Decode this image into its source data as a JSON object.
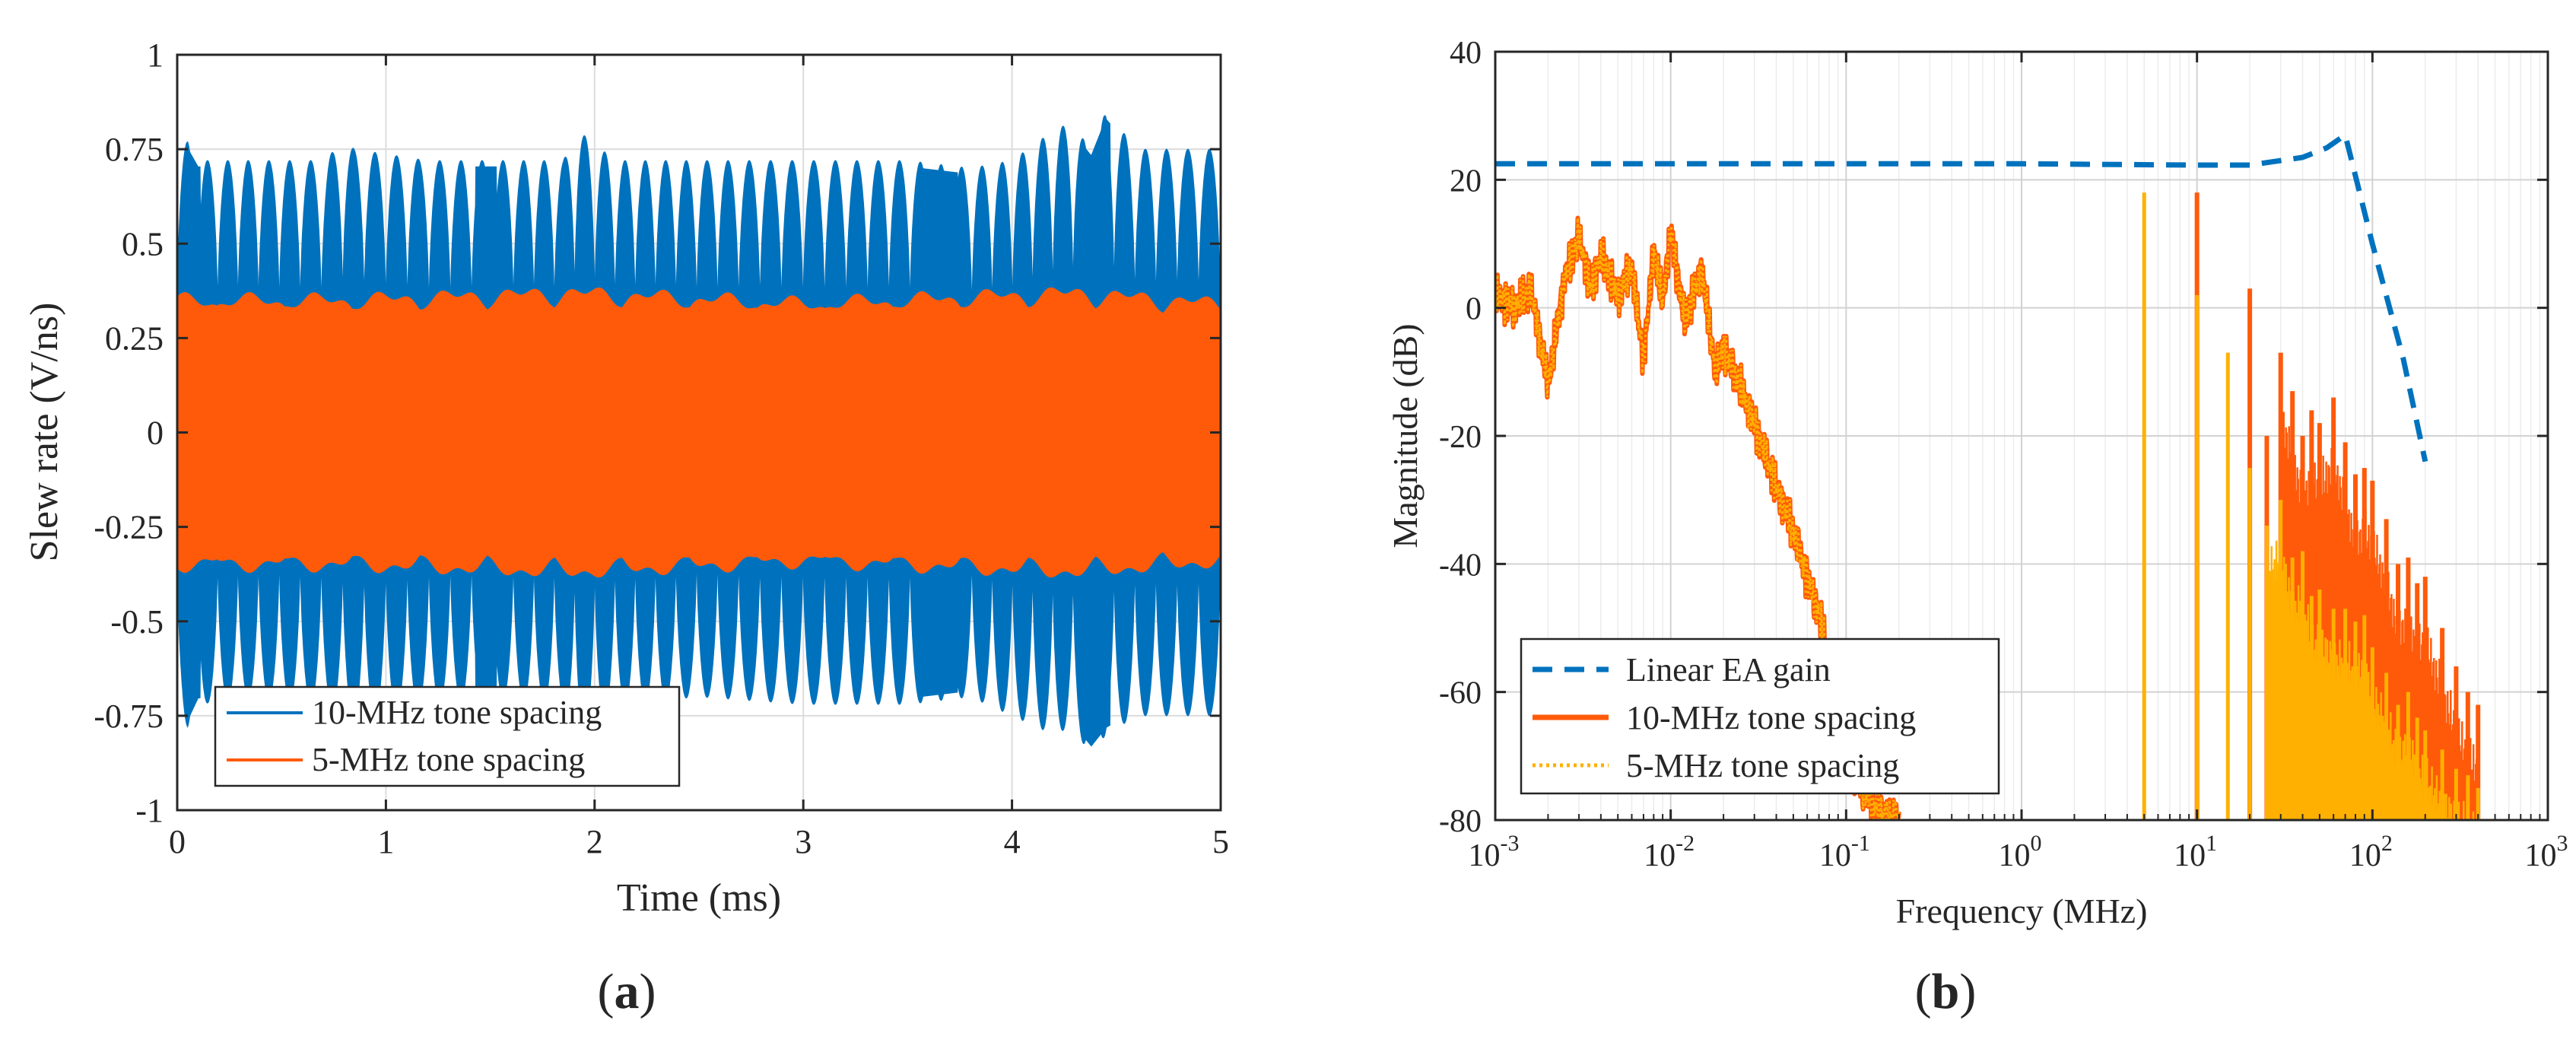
{
  "chart_data": [
    {
      "id": "a",
      "type": "area",
      "panel_label": "(a)",
      "panel_letter": "a",
      "xlabel": "Time (ms)",
      "ylabel": "Slew rate (V/ns)",
      "xlim": [
        0,
        5
      ],
      "ylim": [
        -1,
        1
      ],
      "xticks": [
        0,
        1,
        2,
        3,
        4,
        5
      ],
      "xtick_labels": [
        "0",
        "1",
        "2",
        "3",
        "4",
        "5"
      ],
      "yticks": [
        -1,
        -0.75,
        -0.5,
        -0.25,
        0,
        0.25,
        0.5,
        0.75,
        1
      ],
      "ytick_labels": [
        "-1",
        "-0.75",
        "-0.5",
        "-0.25",
        "0",
        "0.25",
        "0.5",
        "0.75",
        "1"
      ],
      "grid": true,
      "legend_position": "bottom-left",
      "series": [
        {
          "name": "10-MHz tone spacing",
          "color": "#0072BD",
          "envelope_x": [
            0,
            0.05,
            0.1,
            0.35,
            0.7,
            0.8,
            0.85,
            1.2,
            1.5,
            1.85,
            1.92,
            2.1,
            2.5,
            3.0,
            3.5,
            3.8,
            4.0,
            4.2,
            4.28,
            4.38,
            4.45,
            4.6,
            5.0
          ],
          "envelope_max": [
            0.75,
            0.77,
            0.72,
            0.72,
            0.72,
            0.77,
            0.75,
            0.72,
            0.72,
            0.72,
            0.8,
            0.72,
            0.72,
            0.72,
            0.72,
            0.7,
            0.72,
            0.8,
            0.82,
            0.75,
            0.85,
            0.75,
            0.75
          ],
          "envelope_min": [
            -0.72,
            -0.78,
            -0.72,
            -0.7,
            -0.72,
            -0.75,
            -0.76,
            -0.72,
            -0.7,
            -0.72,
            -0.8,
            -0.72,
            -0.7,
            -0.72,
            -0.72,
            -0.7,
            -0.75,
            -0.8,
            -0.78,
            -0.85,
            -0.8,
            -0.75,
            -0.75
          ]
        },
        {
          "name": "5-MHz tone spacing",
          "color": "#FF5A0A",
          "envelope_x": [
            0,
            0.8,
            1.9,
            3.0,
            4.3,
            5.0
          ],
          "envelope_max": [
            0.36,
            0.36,
            0.38,
            0.35,
            0.38,
            0.35
          ],
          "envelope_min": [
            -0.36,
            -0.36,
            -0.38,
            -0.35,
            -0.38,
            -0.35
          ]
        }
      ]
    },
    {
      "id": "b",
      "type": "line",
      "panel_label": "(b)",
      "panel_letter": "b",
      "xscale": "log",
      "xlabel": "Frequency (MHz)",
      "ylabel": "Magnitude (dB)",
      "xlim": [
        0.001,
        1000
      ],
      "ylim": [
        -80,
        40
      ],
      "xtick_bases": [
        "10",
        "10",
        "10",
        "10",
        "10",
        "10",
        "10"
      ],
      "xtick_exponents": [
        "-3",
        "-2",
        "-1",
        "0",
        "1",
        "2",
        "3"
      ],
      "yticks": [
        -80,
        -60,
        -40,
        -20,
        0,
        20,
        40
      ],
      "ytick_labels": [
        "-80",
        "-60",
        "-40",
        "-20",
        "0",
        "20",
        "40"
      ],
      "grid": true,
      "minor_grid": true,
      "legend_position": "bottom-left",
      "series": [
        {
          "name": "Linear EA gain",
          "color": "#0072BD",
          "style": "dashed",
          "x": [
            0.001,
            0.01,
            0.1,
            1,
            10,
            20,
            40,
            55,
            70,
            100,
            150,
            200
          ],
          "y": [
            22.5,
            22.5,
            22.5,
            22.5,
            22.3,
            22.3,
            23.5,
            25,
            27,
            10,
            -8,
            -24
          ]
        },
        {
          "name": "10-MHz tone spacing",
          "color": "#FF5A0A",
          "style": "solid",
          "noise_x": [
            0.001,
            0.0013,
            0.0016,
            0.002,
            0.0025,
            0.003,
            0.0035,
            0.004,
            0.005,
            0.006,
            0.007,
            0.008,
            0.009,
            0.01,
            0.012,
            0.015,
            0.018,
            0.02,
            0.03,
            0.04,
            0.05,
            0.06,
            0.07,
            0.08,
            0.1,
            0.13,
            0.16,
            0.2
          ],
          "noise_y": [
            2,
            0,
            3,
            -12,
            5,
            11,
            3,
            8,
            2,
            6,
            -8,
            9,
            1,
            12,
            -2,
            6,
            -10,
            -6,
            -18,
            -28,
            -35,
            -42,
            -48,
            -55,
            -70,
            -76,
            -79,
            -80
          ],
          "spike_x": [
            5,
            10,
            15,
            20,
            25,
            30,
            35,
            40,
            45,
            50,
            60,
            70,
            80,
            90,
            100,
            120,
            140,
            160,
            180,
            200,
            250,
            300,
            350,
            400
          ],
          "spike_y": [
            -80,
            18,
            -80,
            3,
            -20,
            -7,
            -13,
            -20,
            -16,
            -18,
            -14,
            -21,
            -26,
            -25,
            -27,
            -33,
            -40,
            -39,
            -43,
            -42,
            -50,
            -56,
            -60,
            -62
          ]
        },
        {
          "name": "5-MHz tone spacing",
          "color": "#FFB000",
          "style": "dotted",
          "spike_x": [
            5,
            10,
            15,
            20,
            25,
            30,
            35,
            40,
            45,
            50,
            60,
            70,
            80,
            90,
            100,
            120,
            140,
            160,
            180,
            200,
            250,
            300,
            350,
            400
          ],
          "spike_y": [
            18,
            2,
            -7,
            -25,
            -34,
            -30,
            -39,
            -38,
            -45,
            -44,
            -47,
            -47,
            -49,
            -48,
            -53,
            -57,
            -62,
            -60,
            -64,
            -66,
            -69,
            -72,
            -73,
            -75
          ]
        }
      ]
    }
  ]
}
